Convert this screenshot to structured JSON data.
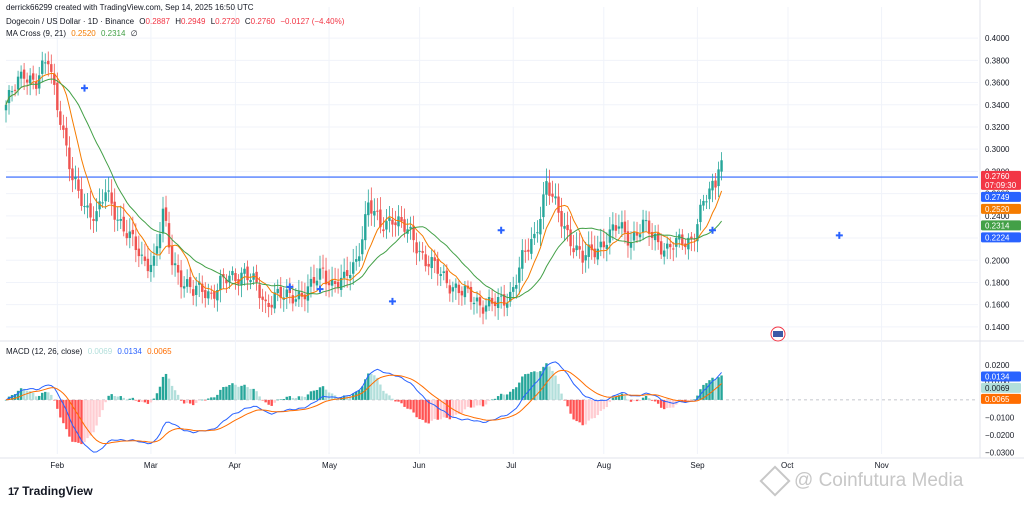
{
  "header": {
    "credit": "derrick66299 created with TradingView.com, Sep 14, 2025 16:50 UTC",
    "symbol": "Dogecoin / US Dollar · 1D · Binance",
    "o_label": "O",
    "o": "0.2887",
    "h_label": "H",
    "h": "0.2949",
    "l_label": "L",
    "l": "0.2720",
    "c_label": "C",
    "c": "0.2760",
    "change": "−0.0127 (−4.40%)",
    "ma_title": "MA Cross (9, 21)",
    "ma_fast": "0.2520",
    "ma_slow": "0.2314",
    "ma_extra": "∅"
  },
  "macd_header": {
    "title": "MACD (12, 26, close)",
    "hist": "0.0069",
    "macd": "0.0134",
    "signal": "0.0065"
  },
  "colors": {
    "up": "#26a69a",
    "down": "#ef5350",
    "ma_fast": "#f57c00",
    "ma_slow": "#43a047",
    "hline": "#2962ff",
    "macd": "#2962ff",
    "signal": "#ff6d00",
    "cross": "#2962ff"
  },
  "price_axis": [
    "0.4000",
    "0.3800",
    "0.3600",
    "0.3400",
    "0.3200",
    "0.3000",
    "0.2800",
    "0.2600",
    "0.2400",
    "0.2200",
    "0.2000",
    "0.1800",
    "0.1600",
    "0.1400"
  ],
  "macd_axis": [
    "0.0200",
    "0.0100",
    "0.0000",
    "−0.0100",
    "−0.0200",
    "−0.0300"
  ],
  "price_tags": [
    {
      "label": "0.2760",
      "label2": "07:09:30",
      "value": 0.276,
      "color": "#f23645"
    },
    {
      "label": "0.2749",
      "value": 0.2749,
      "color": "#2962ff"
    },
    {
      "label": "0.2520",
      "value": 0.252,
      "color": "#f57c00"
    },
    {
      "label": "0.2314",
      "value": 0.2314,
      "color": "#43a047"
    },
    {
      "label": "0.2224",
      "value": 0.2224,
      "color": "#2962ff"
    }
  ],
  "macd_tags": [
    {
      "label": "0.0134",
      "value": 0.0134,
      "color": "#2962ff"
    },
    {
      "label": "0.0069",
      "value": 0.0069,
      "color": "#b2dfdb"
    },
    {
      "label": "0.0065",
      "value": 0.0065,
      "color": "#ff6d00"
    }
  ],
  "time_axis": [
    "Feb",
    "Mar",
    "Apr",
    "May",
    "Jun",
    "Jul",
    "Aug",
    "Sep",
    "Oct",
    "Nov"
  ],
  "branding": {
    "logo": "TradingView",
    "logo_mark": "17",
    "watermark": "@ Coinfutura Media"
  },
  "chart_data": {
    "type": "candlestick",
    "ylim": [
      0.13,
      0.41
    ],
    "macd_ylim": [
      -0.031,
      0.024
    ],
    "x_range_days": [
      0,
      312
    ],
    "month_days": [
      17,
      48,
      76,
      107,
      137,
      168,
      198,
      229,
      259,
      290
    ],
    "horizontal_line": 0.2749,
    "close_anchors": [
      [
        0,
        0.34
      ],
      [
        6,
        0.37
      ],
      [
        10,
        0.36
      ],
      [
        14,
        0.38
      ],
      [
        18,
        0.33
      ],
      [
        22,
        0.27
      ],
      [
        26,
        0.25
      ],
      [
        30,
        0.24
      ],
      [
        33,
        0.26
      ],
      [
        37,
        0.24
      ],
      [
        41,
        0.22
      ],
      [
        45,
        0.2
      ],
      [
        49,
        0.2
      ],
      [
        52,
        0.24
      ],
      [
        55,
        0.2
      ],
      [
        59,
        0.18
      ],
      [
        62,
        0.17
      ],
      [
        65,
        0.175
      ],
      [
        68,
        0.17
      ],
      [
        72,
        0.18
      ],
      [
        75,
        0.185
      ],
      [
        79,
        0.19
      ],
      [
        83,
        0.175
      ],
      [
        86,
        0.16
      ],
      [
        89,
        0.17
      ],
      [
        93,
        0.165
      ],
      [
        97,
        0.17
      ],
      [
        101,
        0.175
      ],
      [
        105,
        0.19
      ],
      [
        108,
        0.18
      ],
      [
        112,
        0.18
      ],
      [
        116,
        0.2
      ],
      [
        120,
        0.25
      ],
      [
        124,
        0.23
      ],
      [
        128,
        0.24
      ],
      [
        131,
        0.23
      ],
      [
        135,
        0.22
      ],
      [
        139,
        0.2
      ],
      [
        143,
        0.19
      ],
      [
        147,
        0.18
      ],
      [
        151,
        0.17
      ],
      [
        155,
        0.165
      ],
      [
        159,
        0.16
      ],
      [
        163,
        0.16
      ],
      [
        167,
        0.17
      ],
      [
        171,
        0.2
      ],
      [
        175,
        0.22
      ],
      [
        179,
        0.27
      ],
      [
        183,
        0.24
      ],
      [
        187,
        0.22
      ],
      [
        191,
        0.2
      ],
      [
        195,
        0.21
      ],
      [
        199,
        0.22
      ],
      [
        203,
        0.23
      ],
      [
        207,
        0.22
      ],
      [
        211,
        0.23
      ],
      [
        215,
        0.22
      ],
      [
        219,
        0.21
      ],
      [
        223,
        0.215
      ],
      [
        227,
        0.22
      ],
      [
        231,
        0.25
      ],
      [
        235,
        0.27
      ],
      [
        236,
        0.29
      ],
      [
        237,
        0.276
      ]
    ],
    "crossovers": [
      [
        26,
        0.355
      ],
      [
        94,
        0.176
      ],
      [
        104,
        0.174
      ],
      [
        128,
        0.163
      ],
      [
        164,
        0.227
      ],
      [
        234,
        0.227
      ],
      [
        276,
        0.2224
      ]
    ],
    "macd_last": {
      "macd": 0.0134,
      "signal": 0.0065,
      "hist": 0.0069
    }
  }
}
